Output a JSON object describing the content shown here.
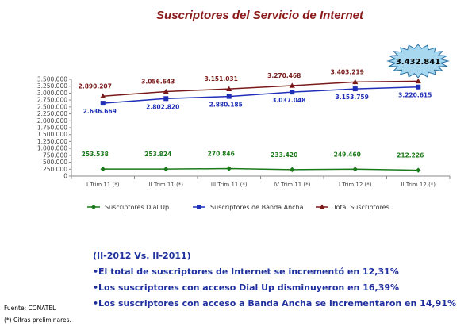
{
  "title": "Suscriptores del Servicio de Internet",
  "chart_data": {
    "type": "line",
    "categories": [
      "I Trim 11 (*)",
      "II Trim 11 (*)",
      "III Trim 11 (*)",
      "IV Trim 11 (*)",
      "I Trim 12 (*)",
      "II Trim 12 (*)"
    ],
    "ylim": [
      0,
      3500000
    ],
    "yticks": [
      "0",
      "250.000",
      "500.000",
      "750.000",
      "1.000.000",
      "1.250.000",
      "1.500.000",
      "1.750.000",
      "2.000.000",
      "2.250.000",
      "2.500.000",
      "2.750.000",
      "3.000.000",
      "3.250.000",
      "3.500.000"
    ],
    "legend_position": "bottom",
    "grid": false,
    "series": [
      {
        "name": "Suscriptores Dial Up",
        "color": "#1a7a1a",
        "marker": "diamond",
        "values": [
          253538,
          253824,
          270846,
          233420,
          249460,
          212226
        ],
        "labels": [
          "253.538",
          "253.824",
          "270.846",
          "233.420",
          "249.460",
          "212.226"
        ]
      },
      {
        "name": "Suscriptores de Banda Ancha",
        "color": "#1f2fb8",
        "marker": "square",
        "values": [
          2636669,
          2802820,
          2880185,
          3037048,
          3153759,
          3220615
        ],
        "labels": [
          "2.636.669",
          "2.802.820",
          "2.880.185",
          "3.037.048",
          "3.153.759",
          "3.220.615"
        ]
      },
      {
        "name": "Total Suscriptores",
        "color": "#7a1a1a",
        "marker": "triangle",
        "values": [
          2890207,
          3056643,
          3151031,
          3270468,
          3403219,
          3432841
        ],
        "labels": [
          "2.890.207",
          "3.056.643",
          "3.151.031",
          "3.270.468",
          "3.403.219",
          "3.432.841"
        ]
      }
    ],
    "callout": "3.432.841"
  },
  "summary": {
    "heading": "(II-2012 Vs. II-2011)",
    "lines": [
      "•El total de suscriptores de Internet se incrementó en 12,31%",
      "•Los suscriptores con acceso Dial Up disminuyeron en 16,39%",
      "•Los suscriptores con acceso a Banda Ancha se incrementaron en 14,91%"
    ]
  },
  "footer": {
    "source": "Fuente: CONATEL",
    "note": "(*) Cifras preliminares."
  }
}
